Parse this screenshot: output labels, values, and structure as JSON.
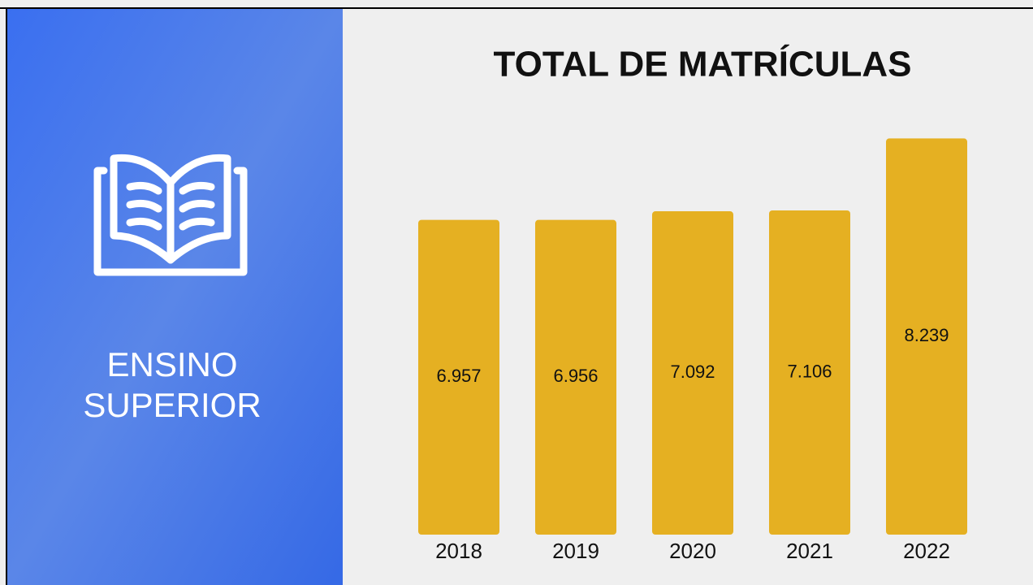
{
  "panel": {
    "lines": [
      "ENSINO",
      "SUPERIOR"
    ]
  },
  "chart_data": {
    "type": "bar",
    "title": "TOTAL DE MATRÍCULAS",
    "categories": [
      "2018",
      "2019",
      "2020",
      "2021",
      "2022"
    ],
    "values": [
      6957,
      6956,
      7092,
      7106,
      8239
    ],
    "value_labels": [
      "6.957",
      "6.956",
      "7.092",
      "7.106",
      "8.239"
    ],
    "color": "#e5b022",
    "ylim": [
      2000,
      8500
    ]
  }
}
